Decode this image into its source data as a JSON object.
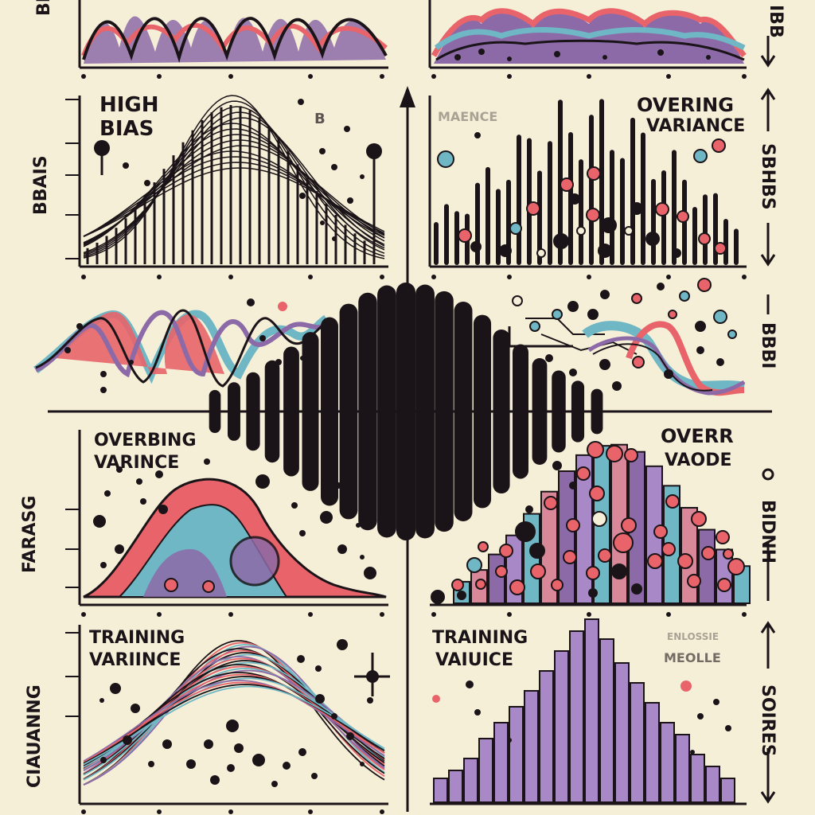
{
  "colors": {
    "background": "#f6efd8",
    "ink": "#1a1418",
    "red": "#e8646a",
    "teal": "#6fb7c4",
    "purple": "#8c6aa8",
    "lavender": "#a888c6",
    "pink": "#d9889a"
  },
  "panels": {
    "top_left": {
      "side_label": "BB"
    },
    "top_right": {
      "side_label": "IBB"
    },
    "high_bias": {
      "title_line1": "HIGH",
      "title_line2": "BIAS",
      "side_label": "BBAIS",
      "faint_label": "B"
    },
    "overing_variance_1": {
      "title_line1": "OVERING",
      "title_line2": "VARIANCE",
      "faint_label": "MAENCE",
      "side_label": "SBHBS"
    },
    "middle_left": {},
    "middle_right": {
      "side_label": "BBBI"
    },
    "overing_variance_2": {
      "title_line1": "OVERBING",
      "title_line2": "VARINCE",
      "side_label": "FARASG"
    },
    "overr_vaode": {
      "title_line1": "OVERR",
      "title_line2": "VAODE",
      "side_label": "BIDNH"
    },
    "training_variance_1": {
      "title_line1": "TRAINING",
      "title_line2": "VARIINCE",
      "side_label": "CIAUANNG"
    },
    "training_variance_2": {
      "title_line1": "TRAINING",
      "title_line2": "VAIUICE",
      "faint_line1": "ENLOSSIE",
      "faint_line2": "MEOLLE",
      "side_label": "SOIRES"
    }
  }
}
